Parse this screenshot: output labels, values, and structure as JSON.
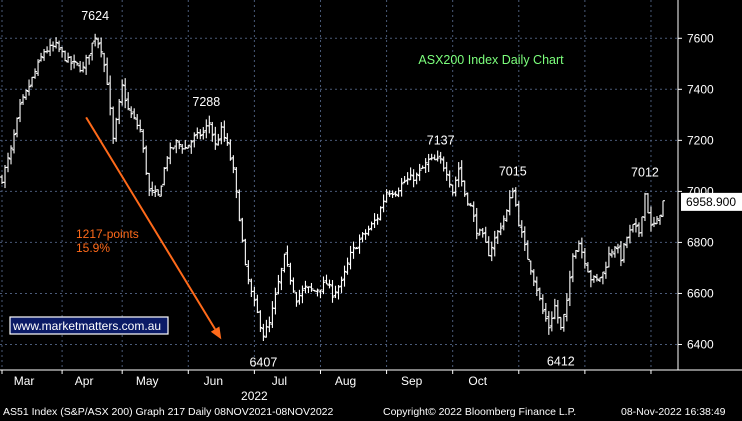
{
  "chart_data": {
    "type": "ohlc",
    "title": "ASX200 Index Daily Chart",
    "ylim": [
      6300,
      7750
    ],
    "y_ticks": [
      6400,
      6600,
      6800,
      7000,
      7200,
      7400,
      7600
    ],
    "x_months": [
      "Mar",
      "Apr",
      "May",
      "Jun",
      "Jul",
      "Aug",
      "Sep",
      "Oct"
    ],
    "year_label": "2022",
    "last_value_label": "6958.900",
    "last_value": 6958.9,
    "grid": true,
    "peak_labels": [
      {
        "text": "7624",
        "value": 7624,
        "index": 31
      },
      {
        "text": "7288",
        "value": 7288,
        "index": 68
      },
      {
        "text": "6407",
        "value": 6407,
        "index": 87
      },
      {
        "text": "7137",
        "value": 7137,
        "index": 146
      },
      {
        "text": "7015",
        "value": 7015,
        "index": 170
      },
      {
        "text": "6412",
        "value": 6412,
        "index": 186
      },
      {
        "text": "7012",
        "value": 7012,
        "index": 214
      }
    ],
    "annotation": {
      "line1": "1217-points",
      "line2": "15.9%",
      "arrow_from": {
        "index": 28,
        "value": 7290
      },
      "arrow_to": {
        "index": 73,
        "value": 6420
      },
      "color": "#ff6a1a"
    },
    "watermark": "www.marketmatters.com.au",
    "anchors": [
      [
        0,
        7050
      ],
      [
        3,
        7160
      ],
      [
        6,
        7330
      ],
      [
        10,
        7440
      ],
      [
        14,
        7550
      ],
      [
        18,
        7570
      ],
      [
        22,
        7510
      ],
      [
        27,
        7480
      ],
      [
        31,
        7610
      ],
      [
        33,
        7560
      ],
      [
        35,
        7430
      ],
      [
        37,
        7200
      ],
      [
        40,
        7410
      ],
      [
        42,
        7320
      ],
      [
        46,
        7240
      ],
      [
        49,
        7000
      ],
      [
        52,
        6980
      ],
      [
        55,
        7140
      ],
      [
        58,
        7190
      ],
      [
        61,
        7170
      ],
      [
        64,
        7210
      ],
      [
        67,
        7230
      ],
      [
        69,
        7270
      ],
      [
        71,
        7180
      ],
      [
        73,
        7240
      ],
      [
        75,
        7180
      ],
      [
        77,
        7080
      ],
      [
        79,
        6900
      ],
      [
        81,
        6700
      ],
      [
        83,
        6600
      ],
      [
        85,
        6520
      ],
      [
        87,
        6440
      ],
      [
        89,
        6480
      ],
      [
        92,
        6640
      ],
      [
        94,
        6740
      ],
      [
        96,
        6660
      ],
      [
        98,
        6580
      ],
      [
        101,
        6620
      ],
      [
        104,
        6610
      ],
      [
        108,
        6640
      ],
      [
        110,
        6600
      ],
      [
        113,
        6640
      ],
      [
        116,
        6750
      ],
      [
        119,
        6810
      ],
      [
        122,
        6850
      ],
      [
        125,
        6900
      ],
      [
        128,
        7000
      ],
      [
        131,
        7000
      ],
      [
        134,
        7040
      ],
      [
        138,
        7060
      ],
      [
        142,
        7120
      ],
      [
        146,
        7120
      ],
      [
        148,
        7080
      ],
      [
        150,
        7000
      ],
      [
        152,
        7090
      ],
      [
        154,
        6990
      ],
      [
        156,
        6940
      ],
      [
        158,
        6850
      ],
      [
        160,
        6820
      ],
      [
        162,
        6760
      ],
      [
        165,
        6840
      ],
      [
        168,
        6920
      ],
      [
        170,
        7010
      ],
      [
        172,
        6880
      ],
      [
        174,
        6780
      ],
      [
        176,
        6700
      ],
      [
        178,
        6620
      ],
      [
        180,
        6530
      ],
      [
        182,
        6470
      ],
      [
        184,
        6550
      ],
      [
        186,
        6460
      ],
      [
        188,
        6560
      ],
      [
        190,
        6760
      ],
      [
        192,
        6800
      ],
      [
        194,
        6730
      ],
      [
        196,
        6660
      ],
      [
        198,
        6650
      ],
      [
        200,
        6680
      ],
      [
        202,
        6750
      ],
      [
        204,
        6790
      ],
      [
        206,
        6740
      ],
      [
        208,
        6820
      ],
      [
        210,
        6860
      ],
      [
        212,
        6840
      ],
      [
        214,
        6990
      ],
      [
        216,
        6860
      ],
      [
        218,
        6880
      ],
      [
        220,
        6958
      ]
    ]
  },
  "footer": {
    "left": "AS51 Index (S&P/ASX 200) Graph 217  Daily 08NOV2021-08NOV2022",
    "center": "Copyright© 2022 Bloomberg Finance L.P.",
    "right": "08-Nov-2022 16:38:49"
  }
}
